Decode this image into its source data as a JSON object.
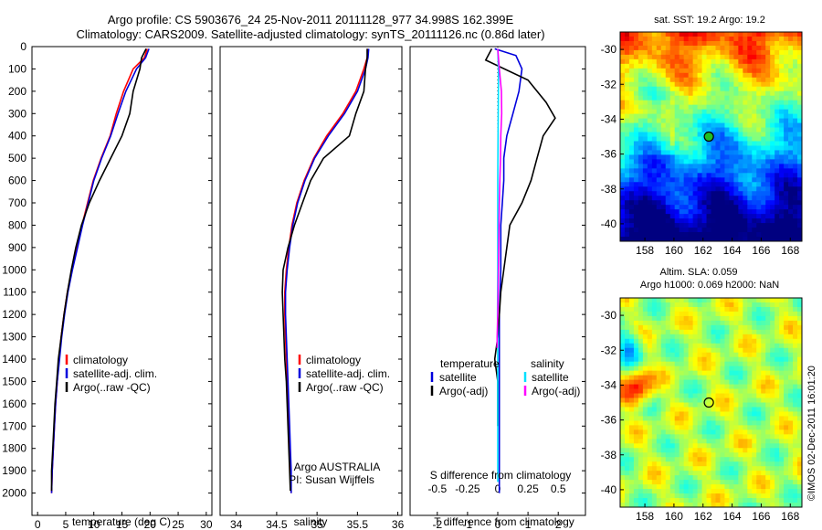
{
  "header": {
    "line1": "Argo profile: CS 5903676_24 25-Nov-2011 20111128_977 34.998S 162.399E",
    "line2": "Climatology: CARS2009. Satellite-adjusted climatology: synTS_20111126.nc (0.86d later)"
  },
  "colors": {
    "climatology": "#ff0000",
    "satellite": "#0000dd",
    "argo": "#000000",
    "sal_satellite": "#00e0ff",
    "sal_argo": "#ff00ff"
  },
  "chart_data": [
    {
      "type": "line",
      "xlabel": "temperature (deg C)",
      "xlim": [
        -1,
        31
      ],
      "xticks": [
        0,
        5,
        10,
        15,
        20,
        25,
        30
      ],
      "ylim": [
        2100,
        0
      ],
      "yticks": [
        0,
        100,
        200,
        300,
        400,
        500,
        600,
        700,
        800,
        900,
        1000,
        1100,
        1200,
        1300,
        1400,
        1500,
        1600,
        1700,
        1800,
        1900,
        2000
      ],
      "legend": [
        "climatology",
        "satellite-adj. clim.",
        "Argo(..raw -QC)"
      ],
      "series": [
        {
          "name": "climatology",
          "color": "#ff0000",
          "points": [
            [
              19.5,
              10
            ],
            [
              19,
              50
            ],
            [
              17,
              100
            ],
            [
              15.3,
              200
            ],
            [
              14,
              300
            ],
            [
              12.9,
              400
            ],
            [
              11.3,
              500
            ],
            [
              9.9,
              600
            ],
            [
              8.9,
              700
            ],
            [
              7.9,
              800
            ],
            [
              7,
              900
            ],
            [
              6.1,
              1000
            ],
            [
              5.3,
              1100
            ],
            [
              4.7,
              1200
            ],
            [
              4.2,
              1300
            ],
            [
              3.8,
              1400
            ],
            [
              3.5,
              1500
            ],
            [
              3.2,
              1600
            ],
            [
              3,
              1700
            ],
            [
              2.8,
              1800
            ],
            [
              2.6,
              1900
            ],
            [
              2.5,
              2000
            ]
          ]
        },
        {
          "name": "satellite-adj. clim.",
          "color": "#0000dd",
          "points": [
            [
              19.8,
              10
            ],
            [
              19.2,
              50
            ],
            [
              17.6,
              100
            ],
            [
              15.7,
              200
            ],
            [
              14.3,
              300
            ],
            [
              13,
              400
            ],
            [
              11.4,
              500
            ],
            [
              10,
              600
            ],
            [
              9,
              700
            ],
            [
              8,
              800
            ],
            [
              7.1,
              900
            ],
            [
              6.2,
              1000
            ],
            [
              5.4,
              1100
            ],
            [
              4.8,
              1200
            ],
            [
              4.3,
              1300
            ],
            [
              3.9,
              1400
            ],
            [
              3.5,
              1500
            ],
            [
              3.2,
              1600
            ],
            [
              3,
              1700
            ],
            [
              2.8,
              1800
            ],
            [
              2.6,
              1900
            ],
            [
              2.5,
              2000
            ]
          ]
        },
        {
          "name": "Argo(..raw -QC)",
          "color": "#000000",
          "points": [
            [
              19.3,
              10
            ],
            [
              18.5,
              50
            ],
            [
              18.2,
              100
            ],
            [
              17,
              200
            ],
            [
              16.4,
              300
            ],
            [
              15,
              400
            ],
            [
              13,
              500
            ],
            [
              11,
              600
            ],
            [
              9.2,
              700
            ],
            [
              7.8,
              800
            ],
            [
              6.8,
              900
            ],
            [
              6,
              1000
            ],
            [
              5.3,
              1100
            ],
            [
              4.7,
              1200
            ],
            [
              4.2,
              1300
            ],
            [
              3.7,
              1400
            ],
            [
              3.4,
              1500
            ],
            [
              3.1,
              1600
            ],
            [
              2.9,
              1700
            ],
            [
              2.7,
              1800
            ],
            [
              2.5,
              1900
            ],
            [
              2.5,
              1990
            ]
          ]
        }
      ]
    },
    {
      "type": "line",
      "xlabel": "salinity",
      "xlim": [
        33.8,
        36.05
      ],
      "xticks": [
        34,
        34.5,
        35,
        35.5,
        36
      ],
      "ylim": [
        2100,
        0
      ],
      "legend": [
        "climatology",
        "satellite-adj. clim.",
        "Argo(..raw -QC)"
      ],
      "annotation": [
        "Argo AUSTRALIA",
        "PI: Susan Wijffels"
      ],
      "series": [
        {
          "name": "climatology",
          "color": "#ff0000",
          "points": [
            [
              35.63,
              10
            ],
            [
              35.62,
              50
            ],
            [
              35.58,
              100
            ],
            [
              35.48,
              200
            ],
            [
              35.32,
              300
            ],
            [
              35.12,
              400
            ],
            [
              34.96,
              500
            ],
            [
              34.84,
              600
            ],
            [
              34.75,
              700
            ],
            [
              34.69,
              800
            ],
            [
              34.65,
              900
            ],
            [
              34.62,
              1000
            ],
            [
              34.6,
              1100
            ],
            [
              34.6,
              1200
            ],
            [
              34.61,
              1300
            ],
            [
              34.62,
              1400
            ],
            [
              34.63,
              1500
            ],
            [
              34.64,
              1600
            ],
            [
              34.65,
              1700
            ],
            [
              34.66,
              1800
            ],
            [
              34.67,
              1900
            ],
            [
              34.68,
              2000
            ]
          ]
        },
        {
          "name": "satellite-adj. clim.",
          "color": "#0000dd",
          "points": [
            [
              35.64,
              10
            ],
            [
              35.63,
              50
            ],
            [
              35.6,
              100
            ],
            [
              35.5,
              200
            ],
            [
              35.34,
              300
            ],
            [
              35.14,
              400
            ],
            [
              34.97,
              500
            ],
            [
              34.85,
              600
            ],
            [
              34.76,
              700
            ],
            [
              34.7,
              800
            ],
            [
              34.66,
              900
            ],
            [
              34.63,
              1000
            ],
            [
              34.61,
              1100
            ],
            [
              34.61,
              1200
            ],
            [
              34.62,
              1300
            ],
            [
              34.63,
              1400
            ],
            [
              34.64,
              1500
            ],
            [
              34.65,
              1600
            ],
            [
              34.66,
              1700
            ],
            [
              34.67,
              1800
            ],
            [
              34.68,
              1900
            ],
            [
              34.68,
              2000
            ]
          ]
        },
        {
          "name": "Argo(..raw -QC)",
          "color": "#000000",
          "points": [
            [
              35.62,
              10
            ],
            [
              35.62,
              50
            ],
            [
              35.6,
              100
            ],
            [
              35.58,
              200
            ],
            [
              35.48,
              300
            ],
            [
              35.4,
              400
            ],
            [
              35.08,
              500
            ],
            [
              34.92,
              600
            ],
            [
              34.82,
              700
            ],
            [
              34.72,
              800
            ],
            [
              34.64,
              900
            ],
            [
              34.58,
              1000
            ],
            [
              34.57,
              1100
            ],
            [
              34.58,
              1200
            ],
            [
              34.59,
              1300
            ],
            [
              34.6,
              1400
            ],
            [
              34.62,
              1500
            ],
            [
              34.63,
              1600
            ],
            [
              34.64,
              1700
            ],
            [
              34.65,
              1800
            ],
            [
              34.66,
              1900
            ],
            [
              34.67,
              1990
            ]
          ]
        }
      ]
    },
    {
      "type": "line",
      "xlabel": "T difference from climatology",
      "xlabel_top": "S difference from climatology",
      "xlim": [
        -2.9,
        2.9
      ],
      "xticks": [
        -2,
        -1,
        0,
        1,
        2
      ],
      "xticks_top": [
        -0.5,
        -0.25,
        0,
        0.25,
        0.5
      ],
      "ylim": [
        2100,
        0
      ],
      "legend_left_title": "temperature",
      "legend_left": [
        "satellite",
        "Argo(-adj)"
      ],
      "legend_right_title": "salinity",
      "legend_right": [
        "satellite",
        "Argo(-adj)"
      ],
      "series": [
        {
          "name": "temperature satellite",
          "color": "#0000dd",
          "points": [
            [
              -0.1,
              10
            ],
            [
              0.6,
              40
            ],
            [
              0.8,
              100
            ],
            [
              0.7,
              200
            ],
            [
              0.5,
              300
            ],
            [
              0.3,
              400
            ],
            [
              0.2,
              500
            ],
            [
              0.2,
              600
            ],
            [
              0.15,
              700
            ],
            [
              0.1,
              800
            ],
            [
              0.1,
              1000
            ],
            [
              0.05,
              1200
            ],
            [
              0.05,
              1400
            ],
            [
              0.05,
              1600
            ],
            [
              0.05,
              1800
            ],
            [
              0.05,
              2000
            ]
          ]
        },
        {
          "name": "temperature Argo(-adj)",
          "color": "#000000",
          "points": [
            [
              -0.2,
              10
            ],
            [
              -0.4,
              60
            ],
            [
              1,
              150
            ],
            [
              1.6,
              250
            ],
            [
              1.9,
              320
            ],
            [
              1.5,
              400
            ],
            [
              1.3,
              500
            ],
            [
              1.1,
              600
            ],
            [
              0.8,
              700
            ],
            [
              0.4,
              800
            ],
            [
              0.3,
              900
            ],
            [
              0.2,
              1000
            ],
            [
              0.1,
              1100
            ],
            [
              0.05,
              1200
            ],
            [
              0.0,
              1300
            ],
            [
              -0.1,
              1400
            ],
            [
              0.0,
              1500
            ],
            [
              0.0,
              1600
            ],
            [
              0.0,
              1700
            ]
          ]
        },
        {
          "name": "salinity satellite",
          "color": "#00e0ff",
          "points": [
            [
              0.0,
              10
            ],
            [
              0.02,
              100
            ],
            [
              0.02,
              200
            ],
            [
              0.01,
              400
            ],
            [
              0.0,
              600
            ],
            [
              0.0,
              800
            ],
            [
              0.0,
              1000
            ],
            [
              -0.01,
              1200
            ],
            [
              0.0,
              1400
            ],
            [
              0.0,
              1600
            ],
            [
              0.0,
              1800
            ],
            [
              0.0,
              1950
            ]
          ]
        },
        {
          "name": "salinity Argo(-adj)",
          "color": "#ff00ff",
          "points": [
            [
              0.0,
              10
            ],
            [
              0.05,
              100
            ],
            [
              0.12,
              200
            ],
            [
              0.13,
              300
            ],
            [
              0.1,
              400
            ],
            [
              0.09,
              500
            ],
            [
              0.07,
              600
            ],
            [
              0.05,
              700
            ],
            [
              0.04,
              800
            ],
            [
              0.02,
              1000
            ],
            [
              0.0,
              1200
            ],
            [
              -0.02,
              1300
            ],
            [
              -0.02,
              1350
            ]
          ]
        }
      ]
    }
  ],
  "maps": {
    "top": {
      "title": "sat. SST: 19.2  Argo: 19.2",
      "lat_ticks": [
        "-30",
        "-32",
        "-34",
        "-36",
        "-38",
        "-40"
      ],
      "lon_ticks": [
        "158",
        "160",
        "162",
        "164",
        "166",
        "168"
      ]
    },
    "bottom": {
      "title1": "Altim. SLA: 0.059",
      "title2": "Argo h1000: 0.069 h2000: NaN",
      "lat_ticks": [
        "-30",
        "-32",
        "-34",
        "-36",
        "-38",
        "-40"
      ],
      "lon_ticks": [
        "158",
        "160",
        "162",
        "164",
        "166",
        "168"
      ]
    },
    "argo_position": {
      "lon": 162.4,
      "lat": -35.0
    },
    "lon_range": [
      156.3,
      168.8
    ],
    "lat_range": [
      -41,
      -29
    ]
  },
  "footer": {
    "side_text": "©IMOS 02-Dec-2011 16:01:20"
  }
}
